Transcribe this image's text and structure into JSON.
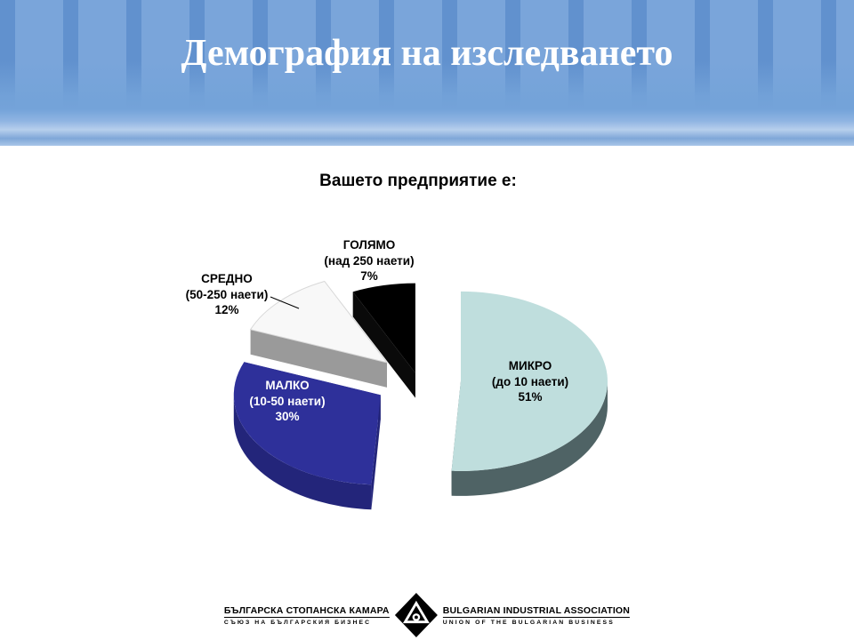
{
  "slide": {
    "title": "Демография на изследването"
  },
  "chart_data": {
    "type": "pie",
    "style": "3d-exploded-pie",
    "title": "Вашето предприятие е:",
    "start_angle_deg": -90,
    "direction": "clockwise",
    "legend": "none",
    "labels_show": [
      "label",
      "sublabel",
      "percent"
    ],
    "slices": [
      {
        "id": "mikro",
        "label": "МИКРО",
        "sublabel": "(до 10 наети)",
        "value_pct": 51,
        "pct_label": "51%",
        "color": "#bfdedd",
        "side_color": "#4f6365",
        "label_color": "#000000"
      },
      {
        "id": "malko",
        "label": "МАЛКО",
        "sublabel": "(10-50 наети)",
        "value_pct": 30,
        "pct_label": "30%",
        "color": "#2e309a",
        "side_color": "#23257a",
        "label_color": "#ffffff"
      },
      {
        "id": "sredno",
        "label": "СРЕДНО",
        "sublabel": "(50-250 наети)",
        "value_pct": 12,
        "pct_label": "12%",
        "color": "#f8f8f8",
        "side_color": "#9a9a9a",
        "label_color": "#000000"
      },
      {
        "id": "goliamo",
        "label": "ГОЛЯМО",
        "sublabel": "(над 250 наети)",
        "value_pct": 7,
        "pct_label": "7%",
        "color": "#000000",
        "side_color": "#0a0a0a",
        "label_color": "#000000"
      }
    ]
  },
  "footer": {
    "left_title": "БЪЛГАРСКА СТОПАНСКА КАМАРА",
    "left_subtitle": "СЪЮЗ НА БЪЛГАРСКИЯ БИЗНЕС",
    "right_title": "BULGARIAN INDUSTRIAL ASSOCIATION",
    "right_subtitle": "UNION OF THE BULGARIAN BUSINESS"
  },
  "colors": {
    "header_stripe_light": "#7aa5da",
    "header_stripe_dark": "#6191ce",
    "header_title_text": "#ffffff",
    "body_background": "#ffffff",
    "chart_text": "#000000"
  }
}
